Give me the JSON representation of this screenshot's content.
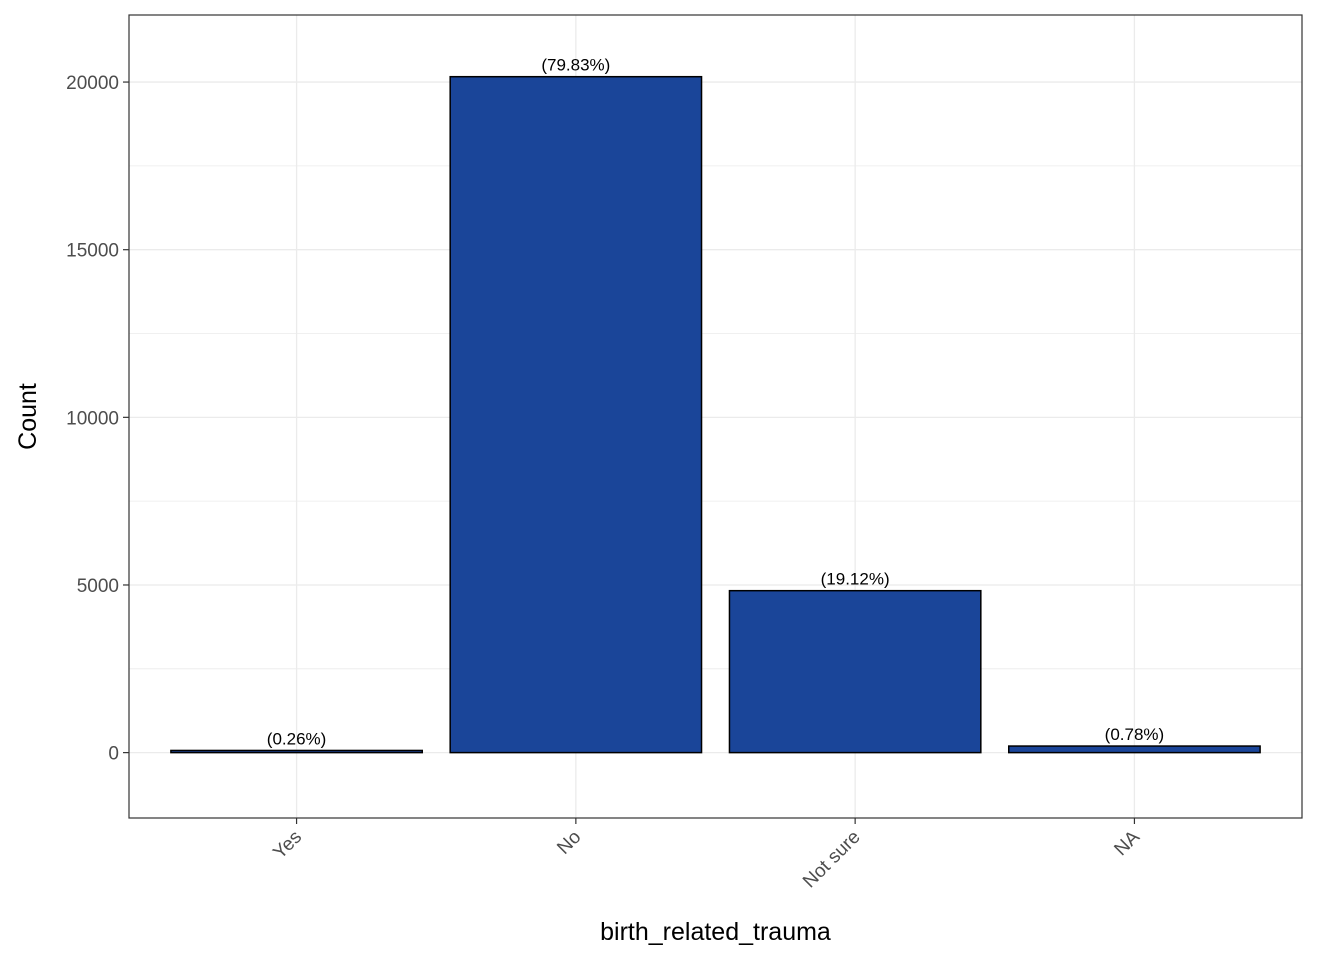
{
  "chart_data": {
    "type": "bar",
    "categories": [
      "Yes",
      "No",
      "Not sure",
      "NA"
    ],
    "values": [
      65,
      20160,
      4830,
      196
    ],
    "labels": [
      "(0.26%)",
      "(79.83%)",
      "(19.12%)",
      "(0.78%)"
    ],
    "xlabel": "birth_related_trauma",
    "ylabel": "Count",
    "ylim": [
      -1950,
      22000
    ],
    "yticks": [
      0,
      5000,
      10000,
      15000,
      20000
    ],
    "grid": true,
    "legend": "none",
    "x_tick_rotation": "45 degrees",
    "colors": {
      "bar_fill": "#1A4599",
      "bar_stroke": "#000000",
      "grid": "#EBEBEB",
      "panel_border": "#333333"
    }
  }
}
